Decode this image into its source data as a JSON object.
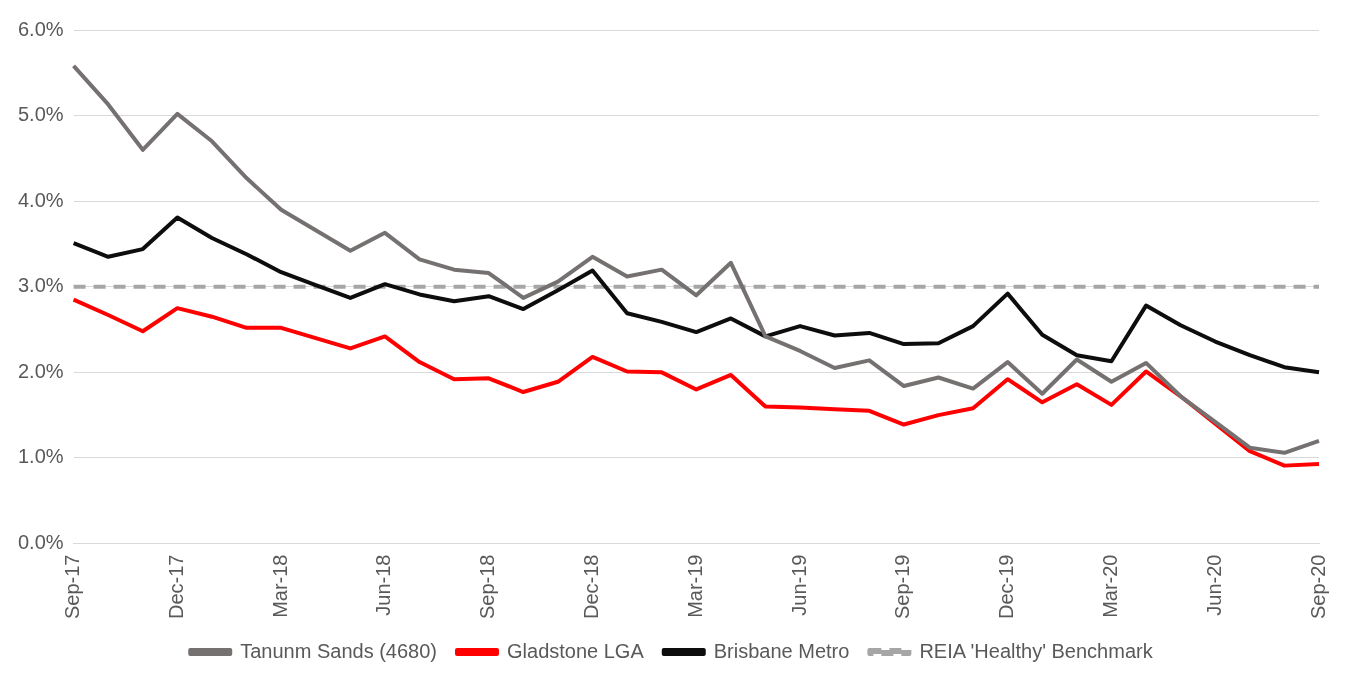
{
  "chart_data": {
    "type": "line",
    "categories": [
      "Sep-17",
      null,
      null,
      "Dec-17",
      null,
      null,
      "Mar-18",
      null,
      null,
      "Jun-18",
      null,
      null,
      "Sep-18",
      null,
      null,
      "Dec-18",
      null,
      null,
      "Mar-19",
      null,
      null,
      "Jun-19",
      null,
      null,
      "Sep-19",
      null,
      null,
      "Dec-19",
      null,
      null,
      "Mar-20",
      null,
      null,
      "Jun-20",
      null,
      null,
      "Sep-20"
    ],
    "series": [
      {
        "name": "Tanunm Sands (4680)",
        "color": "#767171",
        "values": [
          5.58,
          5.13,
          4.6,
          5.02,
          4.7,
          4.27,
          3.9,
          3.66,
          3.42,
          3.63,
          3.32,
          3.2,
          3.16,
          2.87,
          3.06,
          3.35,
          3.12,
          3.2,
          2.9,
          3.28,
          2.42,
          2.25,
          2.05,
          2.14,
          1.84,
          1.94,
          1.81,
          2.12,
          1.75,
          2.15,
          1.89,
          2.11,
          1.72,
          1.42,
          1.12,
          1.06,
          1.2
        ]
      },
      {
        "name": "Gladstone LGA",
        "color": "#ff0000",
        "values": [
          2.85,
          2.67,
          2.48,
          2.75,
          2.65,
          2.52,
          2.52,
          2.4,
          2.28,
          2.42,
          2.12,
          1.92,
          1.93,
          1.77,
          1.89,
          2.18,
          2.01,
          2.0,
          1.8,
          1.97,
          1.6,
          1.59,
          1.57,
          1.55,
          1.39,
          1.5,
          1.58,
          1.92,
          1.65,
          1.86,
          1.62,
          2.01,
          1.72,
          1.4,
          1.08,
          0.91,
          0.93
        ]
      },
      {
        "name": "Brisbane Metro",
        "color": "#0d0d0d",
        "values": [
          3.51,
          3.35,
          3.44,
          3.81,
          3.57,
          3.38,
          3.17,
          3.02,
          2.87,
          3.03,
          2.91,
          2.83,
          2.89,
          2.74,
          2.96,
          3.19,
          2.69,
          2.59,
          2.47,
          2.63,
          2.42,
          2.54,
          2.43,
          2.46,
          2.33,
          2.34,
          2.54,
          2.92,
          2.44,
          2.2,
          2.13,
          2.78,
          2.55,
          2.36,
          2.2,
          2.06,
          2.0
        ]
      },
      {
        "name": "REIA 'Healthy' Benchmark",
        "color": "#a6a6a6",
        "line_style": "dashed",
        "values": [
          3,
          3,
          3,
          3,
          3,
          3,
          3,
          3,
          3,
          3,
          3,
          3,
          3,
          3,
          3,
          3,
          3,
          3,
          3,
          3,
          3,
          3,
          3,
          3,
          3,
          3,
          3,
          3,
          3,
          3,
          3,
          3,
          3,
          3,
          3,
          3,
          3
        ]
      }
    ],
    "ylim": [
      0,
      6
    ],
    "yticks": [
      {
        "value": 0,
        "label": "0.0%"
      },
      {
        "value": 1,
        "label": "1.0%"
      },
      {
        "value": 2,
        "label": "2.0%"
      },
      {
        "value": 3,
        "label": "3.0%"
      },
      {
        "value": 4,
        "label": "4.0%"
      },
      {
        "value": 5,
        "label": "5.0%"
      },
      {
        "value": 6,
        "label": "6.0%"
      }
    ],
    "grid": "y",
    "legend": "bottom",
    "marker": "none",
    "line_style": "solid"
  }
}
